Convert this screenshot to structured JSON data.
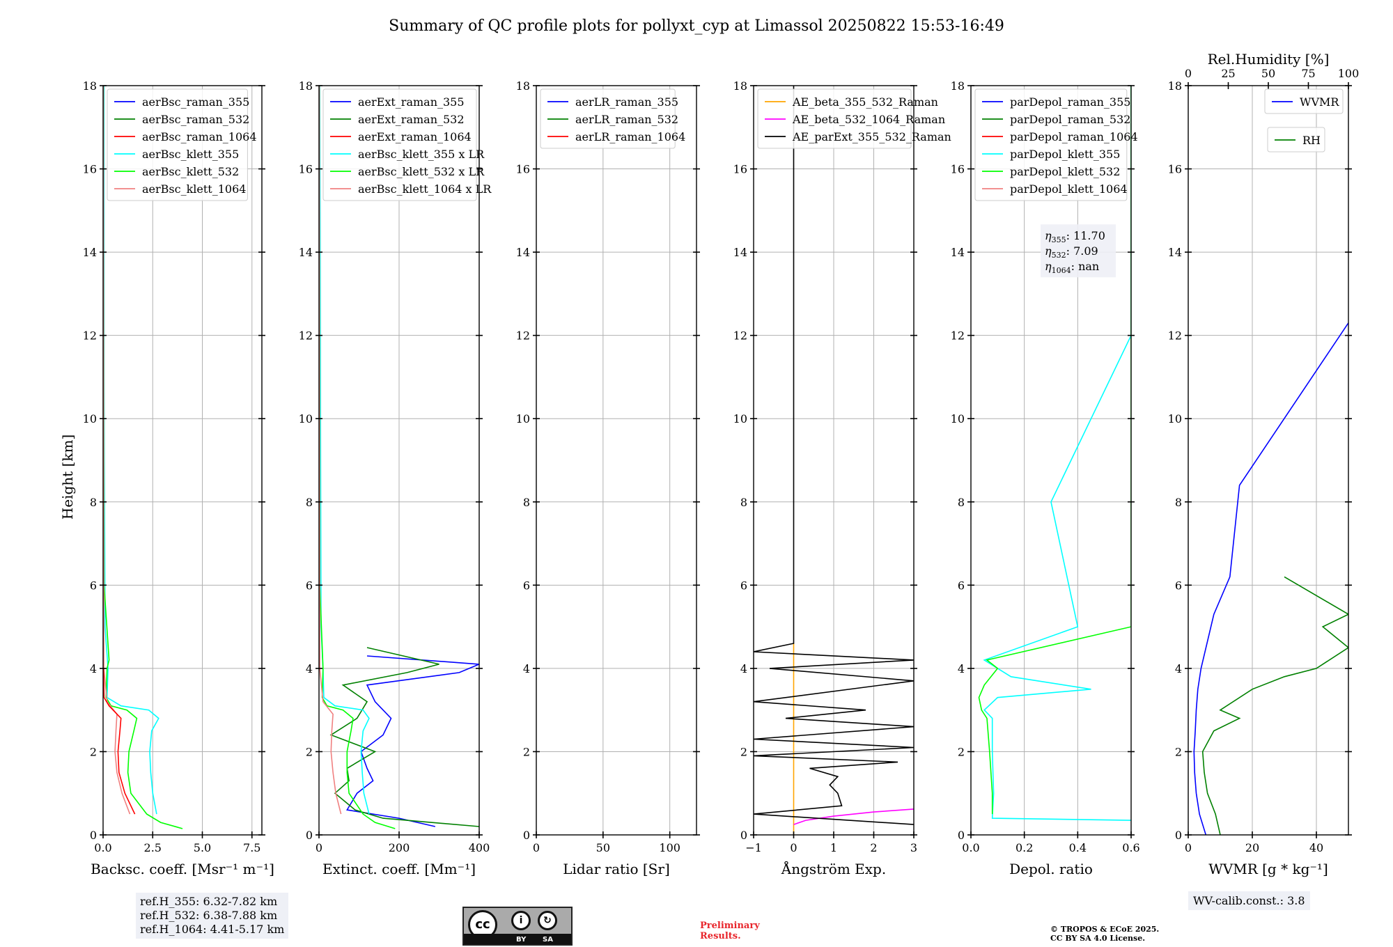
{
  "title": "Summary of QC profile plots for pollyxt_cyp at Limassol 20250822 15:53-16:49",
  "ylabel": "Height [km]",
  "y_ticks": [
    "0",
    "2",
    "4",
    "6",
    "8",
    "10",
    "12",
    "14",
    "16",
    "18"
  ],
  "panels": [
    {
      "id": "bsc",
      "xlabel": "Backsc. coeff. [Msr⁻¹ m⁻¹]",
      "xlim": [
        0,
        8
      ],
      "xticks": [
        {
          "v": 0,
          "t": "0.0"
        },
        {
          "v": 2.5,
          "t": "2.5"
        },
        {
          "v": 5,
          "t": "5.0"
        },
        {
          "v": 7.5,
          "t": "7.5"
        }
      ],
      "legend": [
        {
          "label": "aerBsc_raman_355",
          "color": "#0000ff"
        },
        {
          "label": "aerBsc_raman_532",
          "color": "#008000"
        },
        {
          "label": "aerBsc_raman_1064",
          "color": "#ff0000"
        },
        {
          "label": "aerBsc_klett_355",
          "color": "#00ffff"
        },
        {
          "label": "aerBsc_klett_532",
          "color": "#00ff00"
        },
        {
          "label": "aerBsc_klett_1064",
          "color": "#f08080"
        }
      ]
    },
    {
      "id": "ext",
      "xlabel": "Extinct. coeff. [Mm⁻¹]",
      "xlim": [
        0,
        400
      ],
      "xticks": [
        {
          "v": 0,
          "t": "0"
        },
        {
          "v": 200,
          "t": "200"
        },
        {
          "v": 400,
          "t": "400"
        }
      ],
      "legend": [
        {
          "label": "aerExt_raman_355",
          "color": "#0000ff"
        },
        {
          "label": "aerExt_raman_532",
          "color": "#008000"
        },
        {
          "label": "aerExt_raman_1064",
          "color": "#ff0000"
        },
        {
          "label": "aerBsc_klett_355 x LR",
          "color": "#00ffff"
        },
        {
          "label": "aerBsc_klett_532 x LR",
          "color": "#00ff00"
        },
        {
          "label": "aerBsc_klett_1064 x LR",
          "color": "#f08080"
        }
      ]
    },
    {
      "id": "lr",
      "xlabel": "Lidar ratio [Sr]",
      "xlim": [
        0,
        120
      ],
      "xticks": [
        {
          "v": 0,
          "t": "0"
        },
        {
          "v": 50,
          "t": "50"
        },
        {
          "v": 100,
          "t": "100"
        }
      ],
      "legend": [
        {
          "label": "aerLR_raman_355",
          "color": "#0000ff"
        },
        {
          "label": "aerLR_raman_532",
          "color": "#008000"
        },
        {
          "label": "aerLR_raman_1064",
          "color": "#ff0000"
        }
      ]
    },
    {
      "id": "ae",
      "xlabel": "Ångström Exp.",
      "xlim": [
        -1,
        3
      ],
      "xticks": [
        {
          "v": -1,
          "t": "−1"
        },
        {
          "v": 0,
          "t": "0"
        },
        {
          "v": 1,
          "t": "1"
        },
        {
          "v": 2,
          "t": "2"
        },
        {
          "v": 3,
          "t": "3"
        }
      ],
      "legend": [
        {
          "label": "AE_beta_355_532_Raman",
          "color": "#ffa500"
        },
        {
          "label": "AE_beta_532_1064_Raman",
          "color": "#ff00ff"
        },
        {
          "label": "AE_parExt_355_532_Raman",
          "color": "#000000"
        }
      ]
    },
    {
      "id": "dep",
      "xlabel": "Depol. ratio",
      "xlim": [
        0,
        0.6
      ],
      "xticks": [
        {
          "v": 0,
          "t": "0.0"
        },
        {
          "v": 0.2,
          "t": "0.2"
        },
        {
          "v": 0.4,
          "t": "0.4"
        },
        {
          "v": 0.6,
          "t": "0.6"
        }
      ],
      "legend": [
        {
          "label": "parDepol_raman_355",
          "color": "#0000ff"
        },
        {
          "label": "parDepol_raman_532",
          "color": "#008000"
        },
        {
          "label": "parDepol_raman_1064",
          "color": "#ff0000"
        },
        {
          "label": "parDepol_klett_355",
          "color": "#00ffff"
        },
        {
          "label": "parDepol_klett_532",
          "color": "#00ff00"
        },
        {
          "label": "parDepol_klett_1064",
          "color": "#f08080"
        }
      ],
      "eta": [
        {
          "sub": "355",
          "value": "11.70"
        },
        {
          "sub": "532",
          "value": "7.09"
        },
        {
          "sub": "1064",
          "value": "nan"
        }
      ]
    },
    {
      "id": "wv",
      "xlabel": "WVMR [g * kg⁻¹]",
      "xlim": [
        0,
        50
      ],
      "xticks": [
        {
          "v": 0,
          "t": "0"
        },
        {
          "v": 20,
          "t": "20"
        },
        {
          "v": 40,
          "t": "40"
        }
      ],
      "top_xlabel": "Rel.Humidity [%]",
      "top_xticks": [
        "0",
        "25",
        "50",
        "75",
        "100"
      ],
      "legend": [
        {
          "label": "WVMR",
          "color": "#0000ff"
        }
      ],
      "legend2": [
        {
          "label": "RH",
          "color": "#008000"
        }
      ]
    }
  ],
  "notes": {
    "refh": [
      "ref.H_355: 6.32-7.82 km",
      "ref.H_532: 6.38-7.88 km",
      "ref.H_1064: 4.41-5.17 km"
    ],
    "wvcal": "WV-calib.const.: 3.8",
    "prelim": [
      "Preliminary",
      "Results."
    ],
    "copyright": [
      "© TROPOS & ECoE 2025.",
      "CC BY SA 4.0 License."
    ]
  },
  "chart_data": {
    "type": "line",
    "title": "Summary of QC profile plots for pollyxt_cyp at Limassol 20250822 15:53-16:49",
    "ylabel": "Height [km]",
    "ylim": [
      0,
      18
    ],
    "grid": true,
    "panels": [
      {
        "id": "bsc",
        "xlim": [
          0,
          8
        ],
        "series": [
          {
            "name": "aerBsc_klett_355",
            "color": "#00ffff",
            "y": [
              0.5,
              1.0,
              1.5,
              2.0,
              2.5,
              2.8,
              3.0,
              3.1,
              3.3,
              4.0,
              5.0,
              7.0,
              9.0,
              11.0,
              13.0,
              15.0,
              17.0,
              18.0
            ],
            "x": [
              2.7,
              2.5,
              2.4,
              2.35,
              2.45,
              2.8,
              2.3,
              0.9,
              0.2,
              0.25,
              0.1,
              0.08,
              0.06,
              0.05,
              0.05,
              0.05,
              0.05,
              0.05
            ]
          },
          {
            "name": "aerBsc_klett_532",
            "color": "#00ff00",
            "y": [
              0.15,
              0.3,
              0.5,
              1.0,
              1.5,
              2.0,
              2.5,
              2.8,
              3.0,
              3.1,
              3.3,
              4.0,
              4.2,
              6.0,
              10.0,
              18.0
            ],
            "x": [
              4.0,
              2.9,
              2.2,
              1.4,
              1.25,
              1.3,
              1.55,
              1.7,
              1.2,
              0.4,
              0.15,
              0.2,
              0.3,
              0.05,
              0.03,
              0.02
            ]
          },
          {
            "name": "aerBsc_klett_1064",
            "color": "#f08080",
            "y": [
              0.5,
              1.0,
              1.5,
              2.0,
              2.5,
              2.9,
              3.2,
              4.0,
              18.0
            ],
            "x": [
              1.35,
              0.95,
              0.7,
              0.6,
              0.65,
              0.7,
              0.2,
              0.04,
              0.02
            ]
          },
          {
            "name": "aerBsc_raman_1064",
            "color": "#ff0000",
            "y": [
              0.5,
              1.0,
              1.5,
              2.0,
              2.5,
              2.8,
              3.1,
              3.3,
              4.0
            ],
            "x": [
              1.6,
              1.1,
              0.8,
              0.75,
              0.85,
              0.9,
              0.3,
              0.05,
              0.02
            ]
          }
        ]
      },
      {
        "id": "ext",
        "xlim": [
          0,
          400
        ],
        "series": [
          {
            "name": "aerExt_raman_355",
            "color": "#0000ff",
            "y": [
              0.2,
              0.4,
              0.6,
              1.0,
              1.3,
              1.6,
              2.0,
              2.4,
              2.8,
              3.2,
              3.6,
              3.9,
              4.1,
              4.3
            ],
            "x": [
              290,
              200,
              70,
              95,
              135,
              120,
              105,
              160,
              180,
              140,
              120,
              350,
              400,
              120
            ]
          },
          {
            "name": "aerExt_raman_532",
            "color": "#008000",
            "y": [
              0.2,
              0.4,
              0.6,
              1.0,
              1.3,
              1.6,
              2.0,
              2.4,
              2.8,
              3.2,
              3.6,
              3.9,
              4.1,
              4.5
            ],
            "x": [
              400,
              160,
              90,
              40,
              75,
              70,
              140,
              30,
              95,
              120,
              60,
              220,
              300,
              120
            ]
          },
          {
            "name": "aerBsc_klett_355 x LR",
            "color": "#00ffff",
            "y": [
              0.5,
              1.0,
              1.5,
              2.0,
              2.5,
              2.8,
              3.0,
              3.1,
              3.3,
              4.0,
              5.0,
              9.0,
              14.5,
              18.0
            ],
            "x": [
              125,
              112,
              108,
              105,
              110,
              125,
              110,
              40,
              12,
              10,
              5,
              4,
              3,
              2
            ]
          },
          {
            "name": "aerBsc_klett_532 x LR",
            "color": "#00ff00",
            "y": [
              0.15,
              0.3,
              0.5,
              1.0,
              1.5,
              2.0,
              2.5,
              2.8,
              3.0,
              3.1,
              3.3,
              4.0,
              6.0,
              18.0
            ],
            "x": [
              190,
              140,
              110,
              75,
              70,
              70,
              80,
              85,
              60,
              20,
              8,
              10,
              2,
              1
            ]
          },
          {
            "name": "aerBsc_klett_1064 x LR",
            "color": "#f08080",
            "y": [
              0.5,
              1.0,
              1.5,
              2.0,
              2.5,
              2.9,
              3.2,
              4.0,
              18.0
            ],
            "x": [
              55,
              42,
              35,
              30,
              32,
              35,
              10,
              2,
              1
            ]
          }
        ]
      },
      {
        "id": "lr",
        "xlim": [
          0,
          120
        ],
        "series": []
      },
      {
        "id": "ae",
        "xlim": [
          -1,
          3
        ],
        "series": [
          {
            "name": "AE_beta_355_532_Raman",
            "color": "#ffa500",
            "y": [
              0.0,
              4.6
            ],
            "x": [
              0.0,
              0.0
            ]
          },
          {
            "name": "AE_beta_532_1064_Raman",
            "color": "#ff00ff",
            "y": [
              0.25,
              0.35,
              0.45,
              0.55,
              0.62
            ],
            "x": [
              0.0,
              0.3,
              1.0,
              2.0,
              3.0
            ]
          },
          {
            "name": "AE_parExt_355_532_Raman",
            "color": "#000000",
            "y": [
              0.25,
              0.5,
              0.7,
              1.0,
              1.2,
              1.4,
              1.6,
              1.75,
              1.9,
              2.1,
              2.3,
              2.6,
              2.8,
              3.0,
              3.2,
              3.7,
              4.0,
              4.2,
              4.4,
              4.6,
              18.0
            ],
            "x": [
              3.0,
              -1.0,
              1.2,
              1.1,
              0.9,
              1.1,
              0.4,
              2.6,
              -1.0,
              3.0,
              -1.0,
              3.0,
              -0.2,
              1.8,
              -1.0,
              3.0,
              -0.6,
              3.0,
              -1.0,
              0.0,
              0.0
            ]
          }
        ]
      },
      {
        "id": "dep",
        "xlim": [
          0,
          0.6
        ],
        "series": [
          {
            "name": "parDepol_klett_355",
            "color": "#00ffff",
            "y": [
              0.35,
              0.4,
              1.0,
              2.0,
              2.8,
              3.0,
              3.3,
              3.5,
              3.8,
              4.2,
              5.0,
              8.0,
              12.0,
              18.0
            ],
            "x": [
              0.6,
              0.08,
              0.085,
              0.08,
              0.08,
              0.05,
              0.1,
              0.45,
              0.15,
              0.05,
              0.4,
              0.3,
              0.6,
              0.6
            ]
          },
          {
            "name": "parDepol_klett_532",
            "color": "#00ff00",
            "y": [
              0.5,
              1.0,
              2.0,
              2.8,
              3.0,
              3.3,
              3.6,
              4.0,
              4.2,
              5.0,
              8.0,
              12.0,
              18.0
            ],
            "x": [
              0.08,
              0.08,
              0.07,
              0.06,
              0.04,
              0.03,
              0.05,
              0.1,
              0.06,
              0.6,
              0.6,
              0.6,
              0.6
            ]
          }
        ]
      },
      {
        "id": "wv",
        "xlim": [
          0,
          50
        ],
        "series": [
          {
            "name": "WVMR",
            "color": "#0000ff",
            "y": [
              0.0,
              0.5,
              1.0,
              1.5,
              2.0,
              2.5,
              3.0,
              3.5,
              4.0,
              5.3,
              6.2,
              8.4,
              12.3
            ],
            "x": [
              5.5,
              3.5,
              2.5,
              2.0,
              1.8,
              2.2,
              2.5,
              3.0,
              4.0,
              8.0,
              13.0,
              16.0,
              50.0
            ]
          },
          {
            "name": "RH",
            "color": "#008000",
            "y": [
              0.0,
              0.5,
              1.0,
              1.5,
              2.0,
              2.5,
              2.8,
              3.0,
              3.5,
              3.8,
              4.0,
              4.5,
              5.0,
              5.3,
              6.2
            ],
            "x": [
              10.0,
              8.5,
              6.0,
              5.0,
              4.5,
              8.0,
              16.0,
              10.0,
              20.0,
              30.0,
              40.0,
              50.0,
              42.0,
              50.0,
              30.0
            ]
          }
        ]
      }
    ]
  }
}
